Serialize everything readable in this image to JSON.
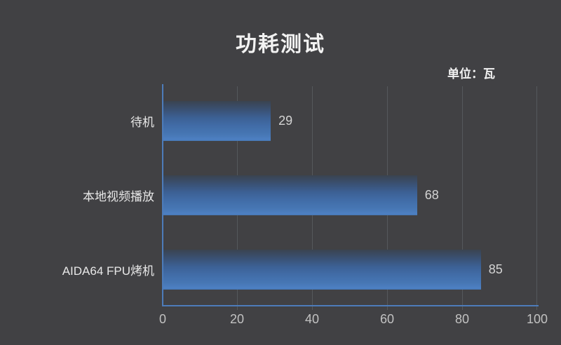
{
  "chart_data": {
    "type": "bar",
    "orientation": "horizontal",
    "title": "功耗测试",
    "unit": "单位：瓦",
    "categories": [
      "待机",
      "本地视频播放",
      "AIDA64 FPU烤机"
    ],
    "values": [
      29,
      68,
      85
    ],
    "xlim": [
      0,
      100
    ],
    "x_ticks": [
      0,
      20,
      40,
      60,
      80,
      100
    ],
    "x_tick_labels": [
      "0",
      "20",
      "40",
      "60",
      "80",
      "100"
    ],
    "grid": "vertical-only",
    "legend": "none",
    "colors": {
      "background": "#414144",
      "title_text": "#f2f2f2",
      "category_text": "#e8e8e8",
      "value_text": "#d4d4d4",
      "tick_text": "#c2c2c2",
      "axis": "#4d7cba",
      "gridline": "#55585c",
      "bar_top": "#3a4350",
      "bar_bottom": "#4d7fc2"
    }
  }
}
